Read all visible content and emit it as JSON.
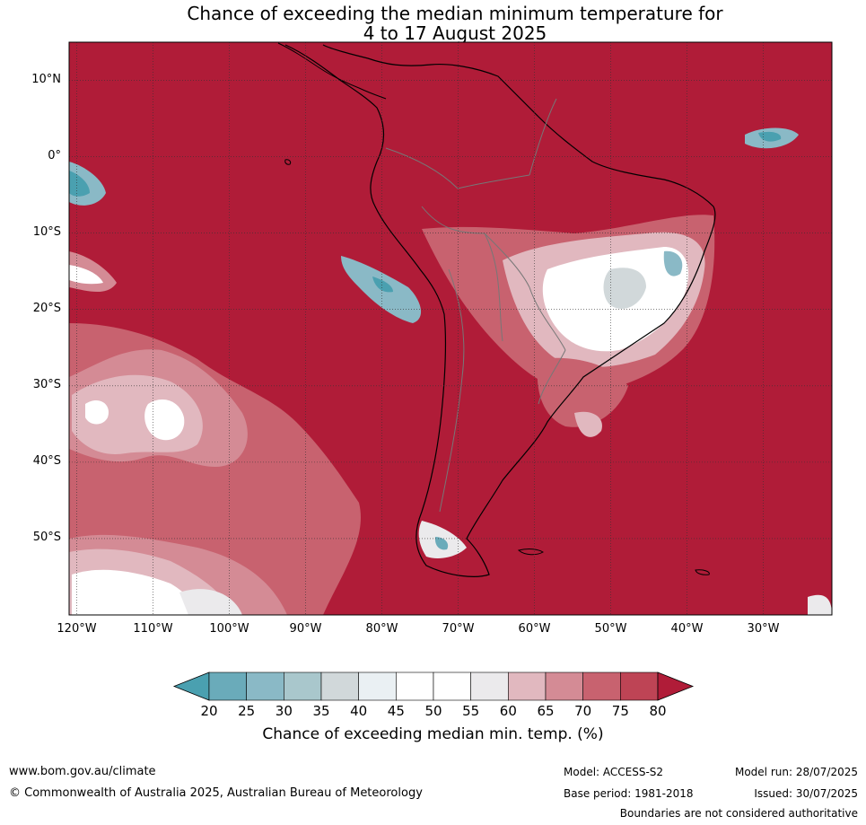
{
  "title": {
    "line1": "Chance of exceeding the median minimum temperature for",
    "line2": "4 to 17 August 2025"
  },
  "map": {
    "region": "South America",
    "background_color": "#b01c38",
    "lat_labels": [
      {
        "text": "10°N",
        "lat": 10
      },
      {
        "text": "0°",
        "lat": 0
      },
      {
        "text": "10°S",
        "lat": -10
      },
      {
        "text": "20°S",
        "lat": -20
      },
      {
        "text": "30°S",
        "lat": -30
      },
      {
        "text": "40°S",
        "lat": -40
      },
      {
        "text": "50°S",
        "lat": -50
      }
    ],
    "lon_labels": [
      {
        "text": "120°W",
        "lon": -120
      },
      {
        "text": "110°W",
        "lon": -110
      },
      {
        "text": "100°W",
        "lon": -100
      },
      {
        "text": "90°W",
        "lon": -90
      },
      {
        "text": "80°W",
        "lon": -80
      },
      {
        "text": "70°W",
        "lon": -70
      },
      {
        "text": "60°W",
        "lon": -60
      },
      {
        "text": "50°W",
        "lon": -50
      },
      {
        "text": "40°W",
        "lon": -40
      },
      {
        "text": "30°W",
        "lon": -30
      }
    ]
  },
  "colorbar": {
    "ticks": [
      "20",
      "25",
      "30",
      "35",
      "40",
      "45",
      "50",
      "55",
      "60",
      "65",
      "70",
      "75",
      "80"
    ],
    "colors": [
      "#4aa0b0",
      "#6aabba",
      "#8ab9c6",
      "#a9c7cc",
      "#d1d8da",
      "#eaf0f3",
      "#ffffff",
      "#ffffff",
      "#ebeaec",
      "#e1b8bf",
      "#d48b95",
      "#c8626f",
      "#be4455",
      "#b01c38"
    ],
    "title": "Chance of exceeding median min. temp. (%)"
  },
  "footer": {
    "website": "www.bom.gov.au/climate",
    "copyright": "© Commonwealth of Australia 2025, Australian Bureau of Meteorology",
    "model": "Model: ACCESS-S2",
    "base_period": "Base period: 1981-2018",
    "model_run": "Model run: 28/07/2025",
    "issued": "Issued: 30/07/2025",
    "disclaimer": "Boundaries are not considered authoritative"
  }
}
